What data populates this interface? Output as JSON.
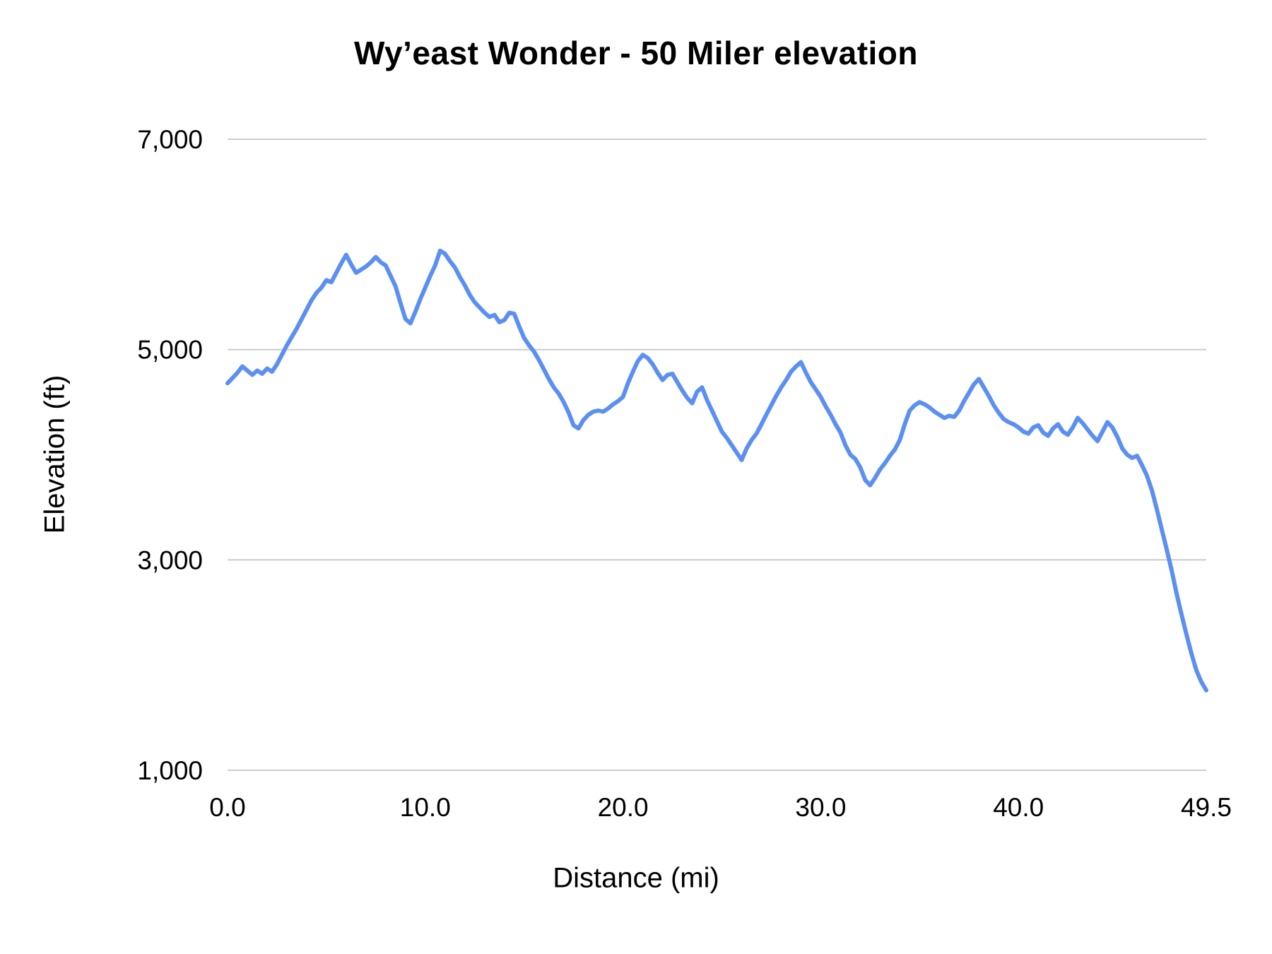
{
  "chart_data": {
    "type": "line",
    "title": "Wy’east Wonder - 50 Miler elevation",
    "xlabel": "Distance (mi)",
    "ylabel": "Elevation (ft)",
    "xlim": [
      0,
      49.5
    ],
    "ylim": [
      1000,
      7000
    ],
    "x_ticks": [
      0,
      10,
      20,
      30,
      40,
      49.5
    ],
    "x_tick_labels": [
      "0.0",
      "10.0",
      "20.0",
      "30.0",
      "40.0",
      "49.5"
    ],
    "y_ticks": [
      1000,
      3000,
      5000,
      7000
    ],
    "y_tick_labels": [
      "1,000",
      "3,000",
      "5,000",
      "7,000"
    ],
    "grid": true,
    "legend": "none",
    "line_color": "#5b8ff2",
    "grid_color": "#cccccc",
    "text_color": "#000000",
    "series": [
      {
        "name": "Elevation (ft)",
        "points": [
          [
            0,
            4680
          ],
          [
            0.25,
            4730
          ],
          [
            0.5,
            4780
          ],
          [
            0.75,
            4840
          ],
          [
            1,
            4800
          ],
          [
            1.25,
            4760
          ],
          [
            1.5,
            4800
          ],
          [
            1.75,
            4770
          ],
          [
            2,
            4820
          ],
          [
            2.25,
            4790
          ],
          [
            2.5,
            4860
          ],
          [
            2.75,
            4950
          ],
          [
            3,
            5040
          ],
          [
            3.25,
            5120
          ],
          [
            3.5,
            5200
          ],
          [
            3.75,
            5290
          ],
          [
            4,
            5380
          ],
          [
            4.25,
            5470
          ],
          [
            4.5,
            5540
          ],
          [
            4.75,
            5590
          ],
          [
            5,
            5660
          ],
          [
            5.25,
            5640
          ],
          [
            5.5,
            5730
          ],
          [
            5.75,
            5820
          ],
          [
            6,
            5900
          ],
          [
            6.25,
            5810
          ],
          [
            6.5,
            5730
          ],
          [
            6.75,
            5760
          ],
          [
            7,
            5790
          ],
          [
            7.25,
            5830
          ],
          [
            7.5,
            5880
          ],
          [
            7.75,
            5830
          ],
          [
            8,
            5800
          ],
          [
            8.25,
            5700
          ],
          [
            8.5,
            5600
          ],
          [
            8.75,
            5440
          ],
          [
            9,
            5290
          ],
          [
            9.25,
            5250
          ],
          [
            9.5,
            5360
          ],
          [
            9.75,
            5480
          ],
          [
            10,
            5590
          ],
          [
            10.25,
            5700
          ],
          [
            10.5,
            5800
          ],
          [
            10.75,
            5940
          ],
          [
            11,
            5910
          ],
          [
            11.25,
            5840
          ],
          [
            11.5,
            5780
          ],
          [
            11.75,
            5690
          ],
          [
            12,
            5610
          ],
          [
            12.25,
            5520
          ],
          [
            12.5,
            5450
          ],
          [
            12.75,
            5400
          ],
          [
            13,
            5350
          ],
          [
            13.25,
            5310
          ],
          [
            13.5,
            5330
          ],
          [
            13.75,
            5260
          ],
          [
            14,
            5280
          ],
          [
            14.25,
            5350
          ],
          [
            14.5,
            5340
          ],
          [
            14.75,
            5220
          ],
          [
            15,
            5110
          ],
          [
            15.25,
            5040
          ],
          [
            15.5,
            4980
          ],
          [
            15.75,
            4900
          ],
          [
            16,
            4810
          ],
          [
            16.25,
            4720
          ],
          [
            16.5,
            4640
          ],
          [
            16.75,
            4580
          ],
          [
            17,
            4500
          ],
          [
            17.25,
            4400
          ],
          [
            17.5,
            4280
          ],
          [
            17.75,
            4250
          ],
          [
            18,
            4330
          ],
          [
            18.25,
            4380
          ],
          [
            18.5,
            4410
          ],
          [
            18.75,
            4420
          ],
          [
            19,
            4410
          ],
          [
            19.25,
            4440
          ],
          [
            19.5,
            4480
          ],
          [
            19.75,
            4510
          ],
          [
            20,
            4550
          ],
          [
            20.25,
            4680
          ],
          [
            20.5,
            4790
          ],
          [
            20.75,
            4890
          ],
          [
            21,
            4950
          ],
          [
            21.25,
            4920
          ],
          [
            21.5,
            4860
          ],
          [
            21.75,
            4780
          ],
          [
            22,
            4710
          ],
          [
            22.25,
            4760
          ],
          [
            22.5,
            4770
          ],
          [
            22.75,
            4690
          ],
          [
            23,
            4610
          ],
          [
            23.25,
            4540
          ],
          [
            23.5,
            4490
          ],
          [
            23.75,
            4600
          ],
          [
            24,
            4640
          ],
          [
            24.25,
            4520
          ],
          [
            24.5,
            4420
          ],
          [
            24.75,
            4320
          ],
          [
            25,
            4220
          ],
          [
            25.25,
            4160
          ],
          [
            25.5,
            4090
          ],
          [
            25.75,
            4020
          ],
          [
            26,
            3950
          ],
          [
            26.25,
            4060
          ],
          [
            26.5,
            4140
          ],
          [
            26.75,
            4200
          ],
          [
            27,
            4290
          ],
          [
            27.25,
            4380
          ],
          [
            27.5,
            4470
          ],
          [
            27.75,
            4560
          ],
          [
            28,
            4640
          ],
          [
            28.25,
            4710
          ],
          [
            28.5,
            4790
          ],
          [
            28.75,
            4840
          ],
          [
            29,
            4880
          ],
          [
            29.25,
            4780
          ],
          [
            29.5,
            4690
          ],
          [
            29.75,
            4620
          ],
          [
            30,
            4550
          ],
          [
            30.25,
            4460
          ],
          [
            30.5,
            4380
          ],
          [
            30.75,
            4290
          ],
          [
            31,
            4210
          ],
          [
            31.25,
            4090
          ],
          [
            31.5,
            4000
          ],
          [
            31.75,
            3960
          ],
          [
            32,
            3880
          ],
          [
            32.25,
            3760
          ],
          [
            32.5,
            3710
          ],
          [
            32.75,
            3780
          ],
          [
            33,
            3860
          ],
          [
            33.25,
            3920
          ],
          [
            33.5,
            3990
          ],
          [
            33.75,
            4050
          ],
          [
            34,
            4140
          ],
          [
            34.25,
            4290
          ],
          [
            34.5,
            4420
          ],
          [
            34.75,
            4470
          ],
          [
            35,
            4500
          ],
          [
            35.25,
            4480
          ],
          [
            35.5,
            4450
          ],
          [
            35.75,
            4410
          ],
          [
            36,
            4380
          ],
          [
            36.25,
            4350
          ],
          [
            36.5,
            4370
          ],
          [
            36.75,
            4360
          ],
          [
            37,
            4420
          ],
          [
            37.25,
            4510
          ],
          [
            37.5,
            4590
          ],
          [
            37.75,
            4670
          ],
          [
            38,
            4720
          ],
          [
            38.25,
            4640
          ],
          [
            38.5,
            4560
          ],
          [
            38.75,
            4470
          ],
          [
            39,
            4400
          ],
          [
            39.25,
            4340
          ],
          [
            39.5,
            4310
          ],
          [
            39.75,
            4290
          ],
          [
            40,
            4260
          ],
          [
            40.25,
            4220
          ],
          [
            40.5,
            4200
          ],
          [
            40.75,
            4260
          ],
          [
            41,
            4280
          ],
          [
            41.25,
            4210
          ],
          [
            41.5,
            4180
          ],
          [
            41.75,
            4250
          ],
          [
            42,
            4290
          ],
          [
            42.25,
            4220
          ],
          [
            42.5,
            4190
          ],
          [
            42.75,
            4260
          ],
          [
            43,
            4350
          ],
          [
            43.25,
            4300
          ],
          [
            43.5,
            4240
          ],
          [
            43.75,
            4180
          ],
          [
            44,
            4130
          ],
          [
            44.25,
            4220
          ],
          [
            44.5,
            4310
          ],
          [
            44.75,
            4260
          ],
          [
            45,
            4170
          ],
          [
            45.25,
            4060
          ],
          [
            45.5,
            4000
          ],
          [
            45.75,
            3970
          ],
          [
            46,
            3990
          ],
          [
            46.25,
            3900
          ],
          [
            46.5,
            3800
          ],
          [
            46.75,
            3660
          ],
          [
            47,
            3480
          ],
          [
            47.25,
            3290
          ],
          [
            47.5,
            3100
          ],
          [
            47.75,
            2900
          ],
          [
            48,
            2680
          ],
          [
            48.25,
            2480
          ],
          [
            48.5,
            2290
          ],
          [
            48.75,
            2110
          ],
          [
            49,
            1950
          ],
          [
            49.25,
            1840
          ],
          [
            49.5,
            1760
          ]
        ]
      }
    ]
  }
}
